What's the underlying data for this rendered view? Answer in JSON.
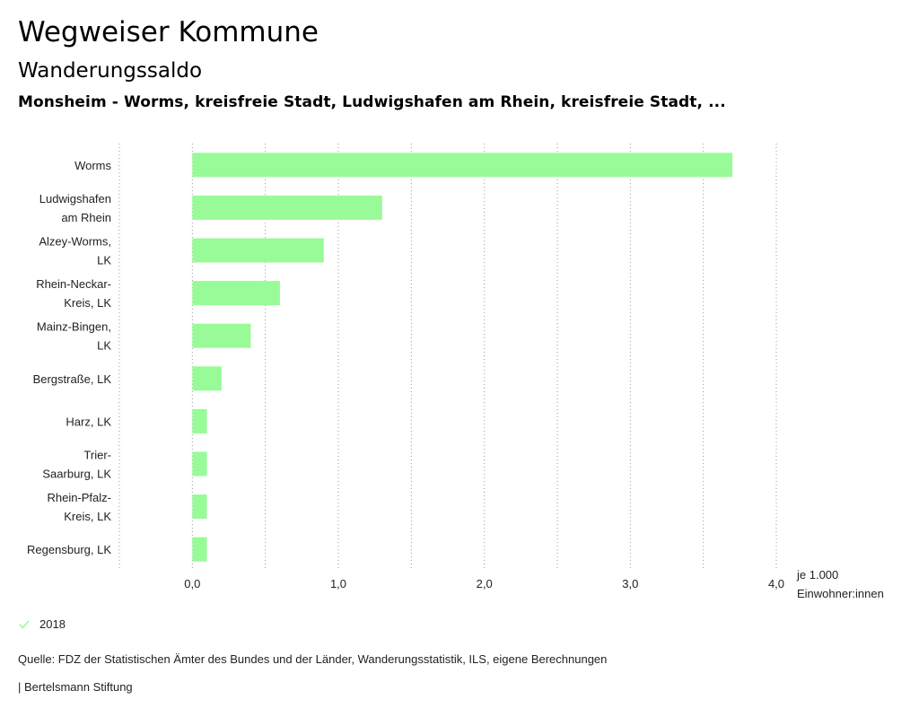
{
  "header": {
    "title": "Wegweiser Kommune",
    "subtitle": "Wanderungssaldo",
    "region": "Monsheim - Worms, kreisfreie Stadt, Ludwigshafen am Rhein, kreisfreie Stadt, ..."
  },
  "chart_data": {
    "type": "bar",
    "orientation": "horizontal",
    "categories": [
      [
        "Worms"
      ],
      [
        "Ludwigshafen",
        "am Rhein"
      ],
      [
        "Alzey-Worms,",
        "LK"
      ],
      [
        "Rhein-Neckar-",
        "Kreis, LK"
      ],
      [
        "Mainz-Bingen,",
        "LK"
      ],
      [
        "Bergstraße, LK"
      ],
      [
        "Harz, LK"
      ],
      [
        "Trier-",
        "Saarburg, LK"
      ],
      [
        "Rhein-Pfalz-",
        "Kreis, LK"
      ],
      [
        "Regensburg, LK"
      ]
    ],
    "series": [
      {
        "name": "2018",
        "values": [
          3.7,
          1.3,
          0.9,
          0.6,
          0.4,
          0.2,
          0.1,
          0.1,
          0.1,
          0.1
        ]
      }
    ],
    "xlim": [
      -0.5,
      4.0
    ],
    "xticks": [
      0.0,
      1.0,
      2.0,
      3.0,
      4.0
    ],
    "xtick_labels": [
      "0,0",
      "1,0",
      "2,0",
      "3,0",
      "4,0"
    ],
    "grid_values": [
      -0.5,
      0.0,
      0.5,
      1.0,
      1.5,
      2.0,
      2.5,
      3.0,
      3.5,
      4.0
    ],
    "unit_label": [
      "je 1.000",
      "Einwohner:innen"
    ],
    "bar_color": "#98fb98",
    "grid": true
  },
  "legend": {
    "label": "2018",
    "color": "#98fb98"
  },
  "footer": {
    "source": "Quelle: FDZ der Statistischen Ämter des Bundes und der Länder, Wanderungsstatistik, ILS, eigene Berechnungen",
    "credit": "| Bertelsmann Stiftung"
  }
}
